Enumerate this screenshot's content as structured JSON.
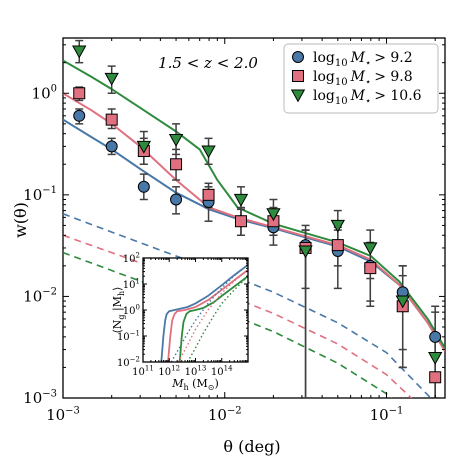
{
  "chart_data": [
    {
      "type": "scatter",
      "annotation": "1.5 < z < 2.0",
      "xlabel": "θ (deg)",
      "ylabel": "w(θ)",
      "xscale": "log",
      "yscale": "log",
      "xlim": [
        0.001,
        0.23
      ],
      "ylim": [
        0.001,
        3.5
      ],
      "x_tick_labels": [
        {
          "value": 0.001,
          "base": "10",
          "exp": "−3"
        },
        {
          "value": 0.01,
          "base": "10",
          "exp": "−2"
        },
        {
          "value": 0.1,
          "base": "10",
          "exp": "−1"
        }
      ],
      "y_tick_labels": [
        {
          "value": 0.001,
          "base": "10",
          "exp": "−3"
        },
        {
          "value": 0.01,
          "base": "10",
          "exp": "−2"
        },
        {
          "value": 0.1,
          "base": "10",
          "exp": "−1"
        },
        {
          "value": 1,
          "base": "10",
          "exp": "0"
        }
      ],
      "legend_position": "top-right",
      "series": [
        {
          "name": "log10 M⋆ > 9.2",
          "legend_parts": {
            "func": "log",
            "sub": "10",
            "var": "M",
            "star": "⋆",
            "rel": "> 9.2"
          },
          "marker": "circle",
          "color": "#4878a8",
          "x": [
            0.00126,
            0.002,
            0.00316,
            0.005,
            0.00794,
            0.0126,
            0.02,
            0.0316,
            0.05,
            0.0794,
            0.126,
            0.2
          ],
          "y": [
            0.6,
            0.3,
            0.12,
            0.09,
            0.085,
            0.055,
            0.048,
            0.032,
            0.028,
            0.02,
            0.011,
            0.004
          ],
          "err_low": [
            0.5,
            0.25,
            0.09,
            0.065,
            0.055,
            0.04,
            0.032,
            0.001,
            0.012,
            0.008,
            0.003,
            0.001
          ],
          "err_high": [
            0.7,
            0.36,
            0.16,
            0.12,
            0.12,
            0.072,
            0.068,
            0.05,
            0.045,
            0.034,
            0.02,
            0.008
          ]
        },
        {
          "name": "log10 M⋆ > 9.8",
          "legend_parts": {
            "func": "log",
            "sub": "10",
            "var": "M",
            "star": "⋆",
            "rel": "> 9.8"
          },
          "marker": "square",
          "color": "#e07080",
          "x": [
            0.00126,
            0.002,
            0.00316,
            0.005,
            0.00794,
            0.0126,
            0.02,
            0.0316,
            0.05,
            0.0794,
            0.126,
            0.2
          ],
          "y": [
            1.0,
            0.55,
            0.27,
            0.2,
            0.1,
            0.055,
            0.055,
            0.03,
            0.032,
            0.019,
            0.008,
            0.0016
          ],
          "err_low": [
            0.85,
            0.45,
            0.2,
            0.14,
            0.075,
            0.04,
            0.04,
            0.012,
            0.02,
            0.009,
            0.002,
            0.001
          ],
          "err_high": [
            1.15,
            0.7,
            0.36,
            0.28,
            0.13,
            0.075,
            0.075,
            0.045,
            0.048,
            0.032,
            0.016,
            0.004
          ]
        },
        {
          "name": "log10 M⋆ > 10.6",
          "legend_parts": {
            "func": "log",
            "sub": "10",
            "var": "M",
            "star": "⋆",
            "rel": "> 10.6"
          },
          "marker": "triangle-down",
          "color": "#2e8b3e",
          "x": [
            0.00126,
            0.002,
            0.00316,
            0.005,
            0.00794,
            0.0126,
            0.02,
            0.0316,
            0.05,
            0.0794,
            0.126,
            0.2
          ],
          "y": [
            2.6,
            1.4,
            0.3,
            0.35,
            0.27,
            0.09,
            0.065,
            0.028,
            0.05,
            0.03,
            0.009,
            0.0025
          ],
          "err_low": [
            2.0,
            1.0,
            0.2,
            0.25,
            0.2,
            0.06,
            0.04,
            0.001,
            0.03,
            0.015,
            0.002,
            0.001
          ],
          "err_high": [
            3.3,
            1.85,
            0.42,
            0.5,
            0.36,
            0.12,
            0.09,
            0.045,
            0.07,
            0.045,
            0.02,
            0.007
          ]
        }
      ],
      "model_curves": [
        {
          "color": "#4878a8",
          "style": "solid",
          "x": [
            0.001,
            0.0015,
            0.002,
            0.003,
            0.005,
            0.008,
            0.012,
            0.02,
            0.03,
            0.05,
            0.08,
            0.12,
            0.18,
            0.23
          ],
          "y": [
            0.55,
            0.37,
            0.28,
            0.18,
            0.105,
            0.072,
            0.058,
            0.047,
            0.039,
            0.031,
            0.022,
            0.013,
            0.0055,
            0.0029
          ]
        },
        {
          "color": "#e07080",
          "style": "solid",
          "x": [
            0.001,
            0.0015,
            0.002,
            0.003,
            0.005,
            0.008,
            0.012,
            0.02,
            0.03,
            0.05,
            0.08,
            0.12,
            0.18,
            0.23
          ],
          "y": [
            1.0,
            0.68,
            0.5,
            0.3,
            0.14,
            0.075,
            0.06,
            0.048,
            0.04,
            0.032,
            0.023,
            0.013,
            0.0055,
            0.0029
          ]
        },
        {
          "color": "#2e8b3e",
          "style": "solid",
          "x": [
            0.001,
            0.0015,
            0.002,
            0.003,
            0.005,
            0.007,
            0.009,
            0.012,
            0.02,
            0.03,
            0.05,
            0.08,
            0.12,
            0.18,
            0.23
          ],
          "y": [
            2.1,
            1.45,
            1.1,
            0.72,
            0.42,
            0.28,
            0.14,
            0.075,
            0.052,
            0.043,
            0.034,
            0.025,
            0.014,
            0.006,
            0.0031
          ]
        },
        {
          "color": "#4878a8",
          "style": "dashed",
          "x": [
            0.001,
            0.002,
            0.005,
            0.01,
            0.02,
            0.05,
            0.1,
            0.2
          ],
          "y": [
            0.065,
            0.043,
            0.025,
            0.017,
            0.011,
            0.0055,
            0.0028,
            0.0009
          ]
        },
        {
          "color": "#e07080",
          "style": "dashed",
          "x": [
            0.001,
            0.002,
            0.005,
            0.01,
            0.02,
            0.05,
            0.1,
            0.2
          ],
          "y": [
            0.04,
            0.027,
            0.016,
            0.0105,
            0.0068,
            0.0034,
            0.0017,
            0.0006
          ]
        },
        {
          "color": "#2e8b3e",
          "style": "dashed",
          "x": [
            0.001,
            0.002,
            0.005,
            0.01,
            0.02,
            0.05,
            0.1,
            0.2
          ],
          "y": [
            0.027,
            0.018,
            0.0105,
            0.007,
            0.0045,
            0.0022,
            0.0011,
            0.0004
          ]
        }
      ]
    },
    {
      "type": "line",
      "role": "inset",
      "xlabel": "Mh (M⊙)",
      "xlabel_parts": {
        "var": "M",
        "sub": "h",
        "unit_open": " (M",
        "unit_sub": "⊙",
        "unit_close": ")"
      },
      "ylabel": "⟨Ng|Mh⟩",
      "ylabel_parts": {
        "open": "⟨N",
        "sub1": "g",
        "mid": " |M",
        "sub2": "h",
        "close": "⟩"
      },
      "xscale": "log",
      "yscale": "log",
      "xlim": [
        100000000000.0,
        1000000000000000.0
      ],
      "ylim": [
        0.01,
        100
      ],
      "x_tick_labels": [
        {
          "value": 100000000000.0,
          "base": "10",
          "exp": "11"
        },
        {
          "value": 1000000000000.0,
          "base": "10",
          "exp": "12"
        },
        {
          "value": 10000000000000.0,
          "base": "10",
          "exp": "13"
        },
        {
          "value": 100000000000000.0,
          "base": "10",
          "exp": "14"
        }
      ],
      "y_tick_labels": [
        {
          "value": 0.01,
          "base": "10",
          "exp": "−2"
        },
        {
          "value": 0.1,
          "base": "10",
          "exp": "−1"
        },
        {
          "value": 1,
          "base": "10",
          "exp": "0"
        },
        {
          "value": 10,
          "base": "10",
          "exp": "1"
        },
        {
          "value": 100,
          "base": "10",
          "exp": "2"
        }
      ],
      "curves": [
        {
          "color": "#4878a8",
          "style": "solid",
          "x": [
            500000000000.0,
            600000000000.0,
            700000000000.0,
            800000000000.0,
            1000000000000.0,
            2000000000000.0,
            5000000000000.0,
            10000000000000.0,
            30000000000000.0,
            100000000000000.0,
            300000000000000.0,
            1000000000000000.0
          ],
          "y": [
            0.01,
            0.1,
            0.4,
            0.7,
            0.9,
            1.05,
            1.3,
            1.8,
            3.5,
            9,
            22,
            55
          ]
        },
        {
          "color": "#e07080",
          "style": "solid",
          "x": [
            900000000000.0,
            1100000000000.0,
            1300000000000.0,
            1600000000000.0,
            2000000000000.0,
            4000000000000.0,
            10000000000000.0,
            30000000000000.0,
            100000000000000.0,
            300000000000000.0,
            1000000000000000.0
          ],
          "y": [
            0.01,
            0.1,
            0.4,
            0.7,
            0.9,
            1.0,
            1.3,
            2.4,
            6,
            14,
            35
          ]
        },
        {
          "color": "#2e8b3e",
          "style": "solid",
          "x": [
            2500000000000.0,
            3000000000000.0,
            3500000000000.0,
            4500000000000.0,
            6000000000000.0,
            10000000000000.0,
            20000000000000.0,
            50000000000000.0,
            100000000000000.0,
            300000000000000.0,
            1000000000000000.0
          ],
          "y": [
            0.01,
            0.1,
            0.35,
            0.7,
            0.9,
            1.0,
            1.2,
            2.0,
            3.5,
            8,
            20
          ]
        },
        {
          "color": "#4878a8",
          "style": "dotted",
          "x": [
            1200000000000.0,
            2000000000000.0,
            5000000000000.0,
            10000000000000.0,
            30000000000000.0,
            100000000000000.0,
            300000000000000.0,
            1000000000000000.0
          ],
          "y": [
            0.01,
            0.025,
            0.13,
            0.4,
            1.8,
            7,
            21,
            55
          ]
        },
        {
          "color": "#e07080",
          "style": "dotted",
          "x": [
            2200000000000.0,
            4000000000000.0,
            10000000000000.0,
            30000000000000.0,
            100000000000000.0,
            300000000000000.0,
            1000000000000000.0
          ],
          "y": [
            0.01,
            0.03,
            0.18,
            1.0,
            4.5,
            13,
            35
          ]
        },
        {
          "color": "#2e8b3e",
          "style": "dotted",
          "x": [
            5000000000000.0,
            10000000000000.0,
            20000000000000.0,
            50000000000000.0,
            100000000000000.0,
            300000000000000.0,
            1000000000000000.0
          ],
          "y": [
            0.01,
            0.035,
            0.13,
            0.6,
            1.8,
            6,
            20
          ]
        }
      ]
    }
  ]
}
